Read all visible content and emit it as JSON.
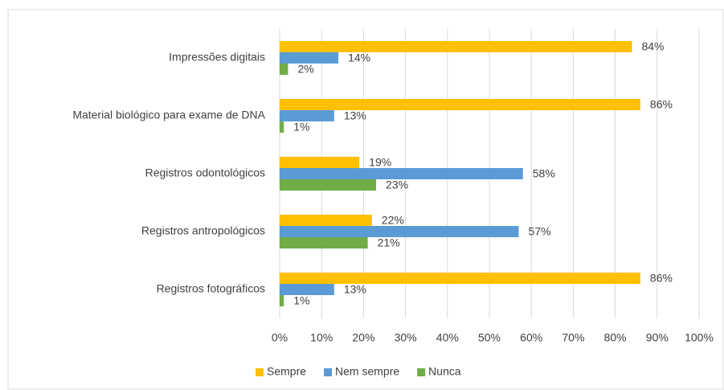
{
  "chart_data": {
    "type": "hbar",
    "categories": [
      "Impressões digitais",
      "Material biológico para exame de DNA",
      "Registros odontológicos",
      "Registros antropológicos",
      "Registros fotográficos"
    ],
    "series": [
      {
        "name": "Sempre",
        "color": "#FFC000",
        "values": [
          84,
          86,
          19,
          22,
          86
        ],
        "value_labels": [
          "84%",
          "86%",
          "19%",
          "22%",
          "86%"
        ]
      },
      {
        "name": "Nem sempre",
        "color": "#5B9BD5",
        "values": [
          14,
          13,
          58,
          57,
          13
        ],
        "value_labels": [
          "14%",
          "13%",
          "58%",
          "57%",
          "13%"
        ]
      },
      {
        "name": "Nunca",
        "color": "#70AD47",
        "values": [
          2,
          1,
          23,
          21,
          1
        ],
        "value_labels": [
          "2%",
          "1%",
          "23%",
          "21%",
          "1%"
        ]
      }
    ],
    "xlim": [
      0,
      100
    ],
    "xticks": [
      {
        "value": 0,
        "label": "0%"
      },
      {
        "value": 10,
        "label": "10%"
      },
      {
        "value": 20,
        "label": "20%"
      },
      {
        "value": 30,
        "label": "30%"
      },
      {
        "value": 40,
        "label": "40%"
      },
      {
        "value": 50,
        "label": "50%"
      },
      {
        "value": 60,
        "label": "60%"
      },
      {
        "value": 70,
        "label": "70%"
      },
      {
        "value": 80,
        "label": "80%"
      },
      {
        "value": 90,
        "label": "90%"
      },
      {
        "value": 100,
        "label": "100%"
      }
    ],
    "grid": true,
    "legend": "bottom"
  }
}
